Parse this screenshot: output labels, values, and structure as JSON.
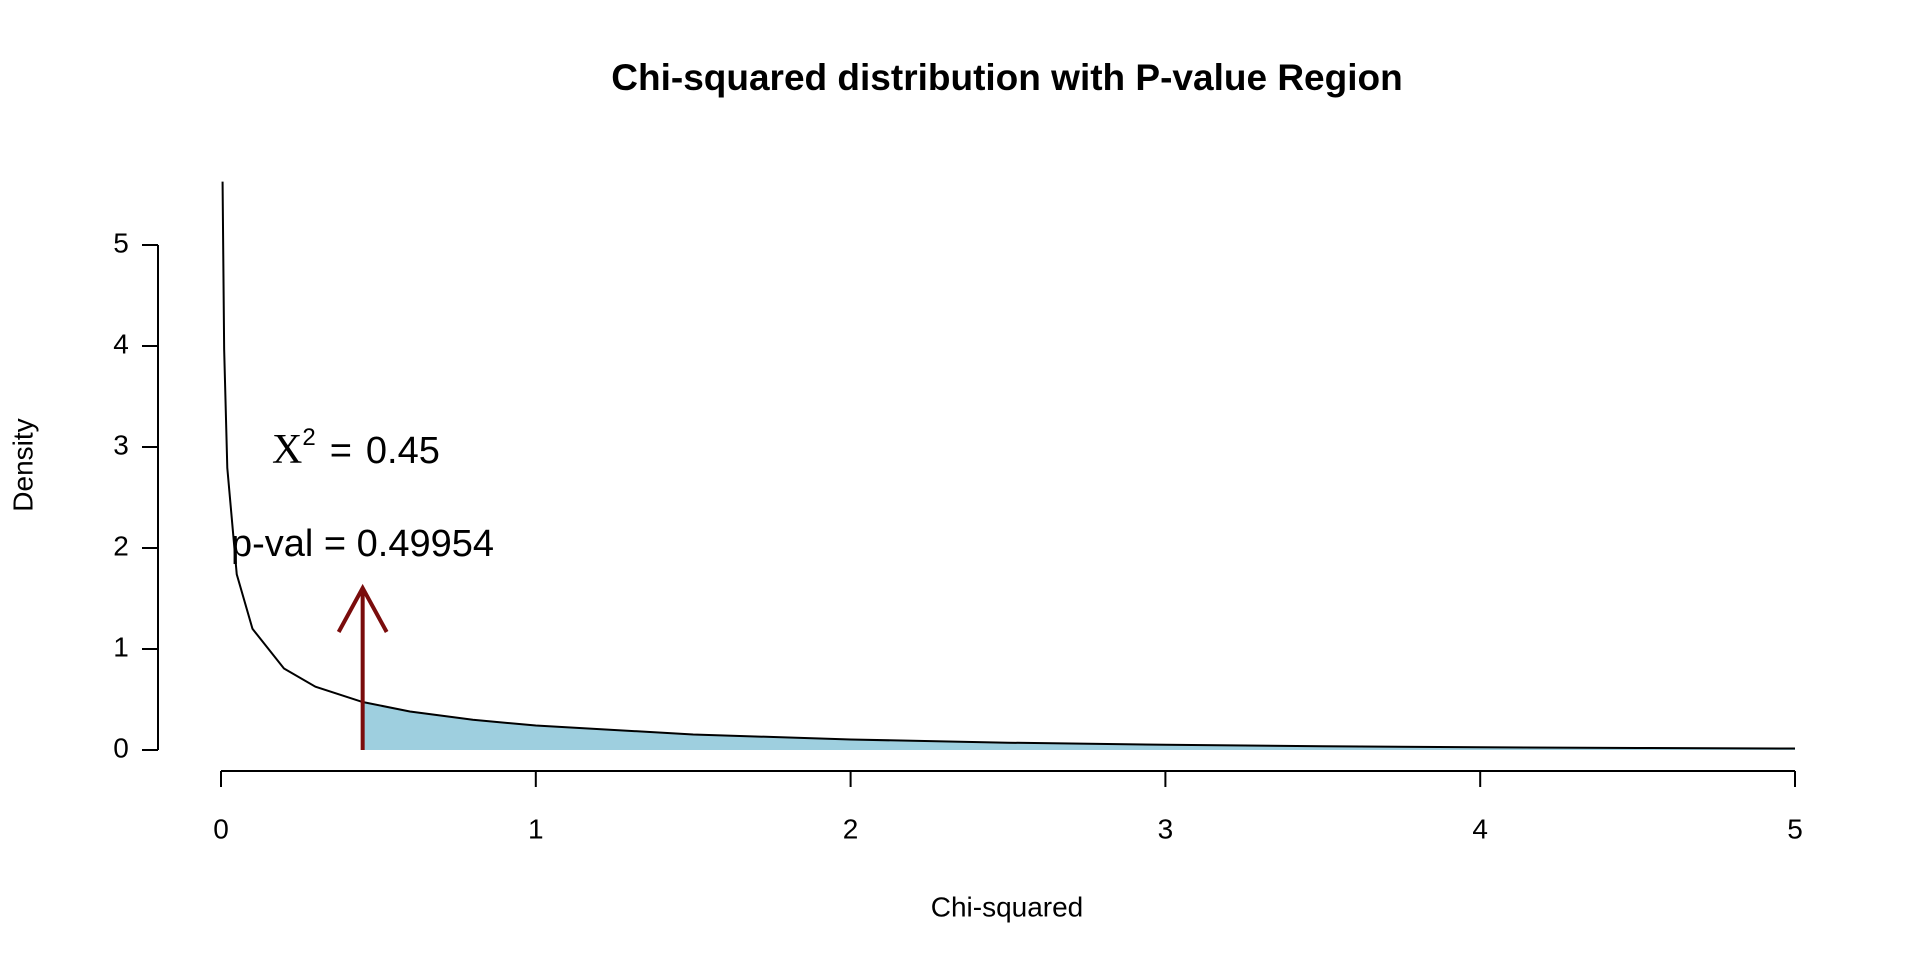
{
  "chart_data": {
    "type": "line",
    "title": "Chi-squared distribution with P-value Region",
    "x_label": "Chi-squared",
    "y_label": "Density",
    "x": [
      0.005,
      0.01,
      0.02,
      0.05,
      0.1,
      0.2,
      0.3,
      0.45,
      0.6,
      0.8,
      1,
      1.5,
      2,
      2.5,
      3,
      3.5,
      4,
      4.5,
      5
    ],
    "series": [
      {
        "color": "#000000",
        "values": [
          5.628,
          3.969,
          2.793,
          1.74,
          1.2,
          0.8072,
          0.6269,
          0.4749,
          0.3815,
          0.299,
          0.242,
          0.1539,
          0.1038,
          0.0723,
          0.0514,
          0.0371,
          0.027,
          0.0198,
          0.0146
        ]
      }
    ],
    "shade_color": "#9ecfdf",
    "statistic": 0.45,
    "stat_symbol": "X",
    "stat_power": "2",
    "stat_equals": "=",
    "p_value_text": "p-val = 0.49954",
    "arrow_color": "#7a0c0c",
    "xlim": [
      0,
      5
    ],
    "ylim": [
      0,
      5
    ],
    "xticks": [
      0,
      1,
      2,
      3,
      4,
      5
    ],
    "yticks": [
      0,
      1,
      2,
      3,
      4,
      5
    ]
  }
}
